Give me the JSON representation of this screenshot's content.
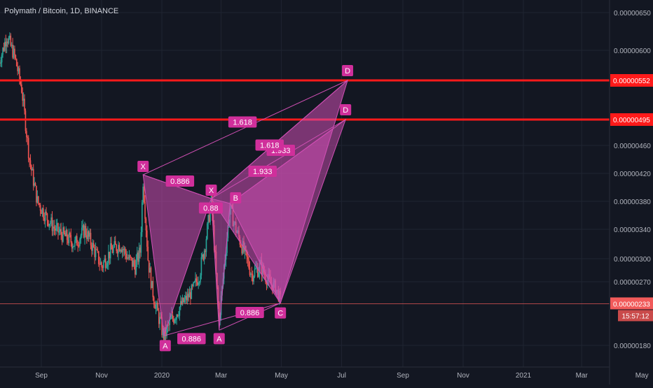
{
  "header": {
    "title": "Polymath / Bitcoin, 1D, BINANCE"
  },
  "price_axis": {
    "labels": [
      {
        "value": 6.5e-06,
        "text": "0.00000650"
      },
      {
        "value": 6e-06,
        "text": "0.00000600"
      },
      {
        "value": 4.6e-06,
        "text": "0.00000460"
      },
      {
        "value": 4.2e-06,
        "text": "0.00000420"
      },
      {
        "value": 3.8e-06,
        "text": "0.00000380"
      },
      {
        "value": 3.4e-06,
        "text": "0.00000340"
      },
      {
        "value": 3e-06,
        "text": "0.00000300"
      },
      {
        "value": 2.7e-06,
        "text": "0.00000270"
      },
      {
        "value": 1.8e-06,
        "text": "0.00000180"
      }
    ],
    "horizontal_levels": [
      {
        "value": 5.52e-06,
        "text": "0.00000552",
        "color": "#ff1a1a"
      },
      {
        "value": 4.95e-06,
        "text": "0.00000495",
        "color": "#ff1a1a"
      }
    ],
    "current_price": {
      "value": 2.33e-06,
      "text": "0.00000233",
      "color": "#f15a5a"
    },
    "countdown": "15:57:12"
  },
  "time_axis": {
    "labels": [
      "Sep",
      "Nov",
      "2020",
      "Mar",
      "May",
      "Jul",
      "Sep",
      "Nov",
      "2021",
      "Mar",
      "May"
    ]
  },
  "colors": {
    "background": "#131722",
    "grid": "#1f2431",
    "candle_up": "#26a69a",
    "candle_down": "#ef5350",
    "pattern_fill": "#d04fb4",
    "pattern_label_bg": "#d02f9b",
    "pattern_label_text": "#ffffff"
  },
  "pattern_points": [
    {
      "label": "X",
      "time": "2019-12-13",
      "price": 4.18e-06
    },
    {
      "label": "A",
      "time": "2020-01-03",
      "price": 1.92e-06
    },
    {
      "label": "X",
      "time": "2020-02-20",
      "price": 3.84e-06
    },
    {
      "label": "B",
      "time": "2020-03-10",
      "price": 3.77e-06
    },
    {
      "label": "A",
      "time": "2020-02-28",
      "price": 1.99e-06
    },
    {
      "label": "C",
      "time": "2020-04-30",
      "price": 2.34e-06
    },
    {
      "label": "D",
      "time": "2020-07-07",
      "price": 5.52e-06
    },
    {
      "label": "D",
      "time": "2020-07-05",
      "price": 4.95e-06
    }
  ],
  "pattern_ratios": [
    "0.886",
    "0.886",
    "0.88",
    "0.886",
    "1.618",
    "1.933",
    "1.618",
    "1.933"
  ]
}
